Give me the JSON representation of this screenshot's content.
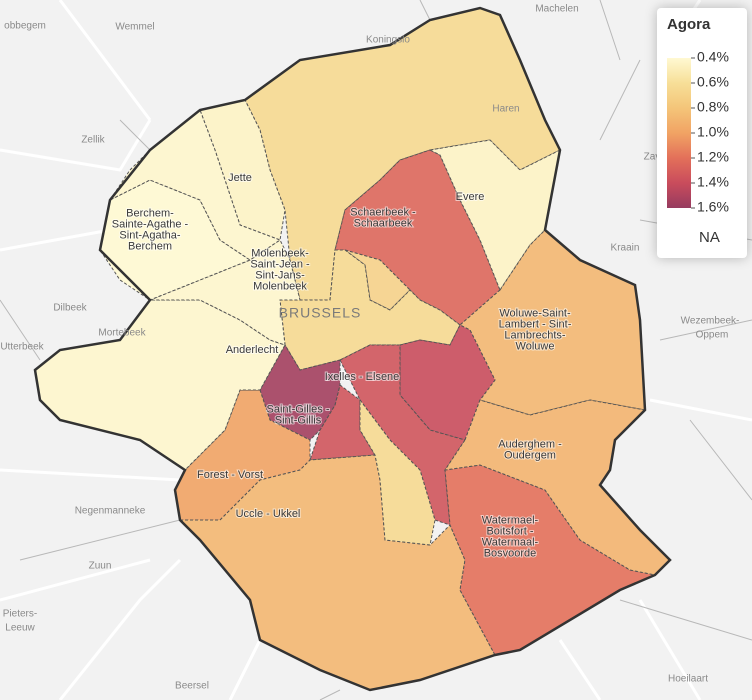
{
  "map": {
    "legend": {
      "title": "Agora",
      "ticks": [
        {
          "value": 0.4,
          "label": "0.4%"
        },
        {
          "value": 0.6,
          "label": "0.6%"
        },
        {
          "value": 0.8,
          "label": "0.8%"
        },
        {
          "value": 1.0,
          "label": "1.0%"
        },
        {
          "value": 1.2,
          "label": "1.2%"
        },
        {
          "value": 1.4,
          "label": "1.4%"
        },
        {
          "value": 1.6,
          "label": "1.6%"
        }
      ],
      "colors": [
        "#fff9d2",
        "#f7df98",
        "#f4c579",
        "#f1a364",
        "#e3705a",
        "#c94c5c",
        "#963b5f"
      ],
      "na_label": "NA"
    },
    "regions": [
      {
        "label": [
          "BRUSSELS"
        ],
        "value": 0.65
      },
      {
        "label": [
          "Schaerbeek -",
          "Schaarbeek"
        ],
        "value": 1.25
      },
      {
        "label": [
          "Evere"
        ],
        "value": 0.45
      },
      {
        "label": null,
        "value": 0.7
      },
      {
        "label": null,
        "value": 0.65
      },
      {
        "label": [
          "Woluwe-Saint-",
          "Lambert - Sint-",
          "Lambrechts-",
          "Woluwe"
        ],
        "value": 0.88
      },
      {
        "label": null,
        "value": 1.4
      },
      {
        "label": [
          "Ixelles - Elsene"
        ],
        "value": 1.35
      },
      {
        "label": [
          "Saint-Gilles -",
          "Sint-Gillis"
        ],
        "value": 1.55
      },
      {
        "label": [
          "Forest - Vorst"
        ],
        "value": 1.0
      },
      {
        "label": [
          "Uccle - Ukkel"
        ],
        "value": 0.88
      },
      {
        "label": null,
        "value": 0.65
      },
      {
        "label": [
          "Watermael-",
          "Boitsfort -",
          "Watermaal-",
          "Bosvoorde"
        ],
        "value": 1.2
      },
      {
        "label": [
          "Auderghem -",
          "Oudergem"
        ],
        "value": 0.9
      },
      {
        "label": [
          "Anderlecht"
        ],
        "value": 0.42
      },
      {
        "label": [
          "Molenbeek-",
          "Saint-Jean -",
          "Sint-Jans-",
          "Molenbeek"
        ],
        "value": 0.42
      },
      {
        "label": [
          "Berchem-",
          "Sainte-Agathe -",
          "Sint-Agatha-",
          "Berchem"
        ],
        "value": 0.4
      },
      {
        "label": [
          "Jette"
        ],
        "value": 0.45
      },
      {
        "label": null,
        "value": 0.42
      }
    ],
    "places": [
      "Wemmel",
      "Machelen",
      "Koningslo",
      "Haren",
      "Zellik",
      "Dilbeek",
      "Zav",
      "Kraain",
      "Wezembeek-",
      "Oppem",
      "Negenmanneke",
      "Zuun",
      "Pieters-",
      "Leeuw",
      "Beersel",
      "Hoeilaart",
      "obbegem",
      "Utterbeek",
      "Mortebeek"
    ]
  }
}
